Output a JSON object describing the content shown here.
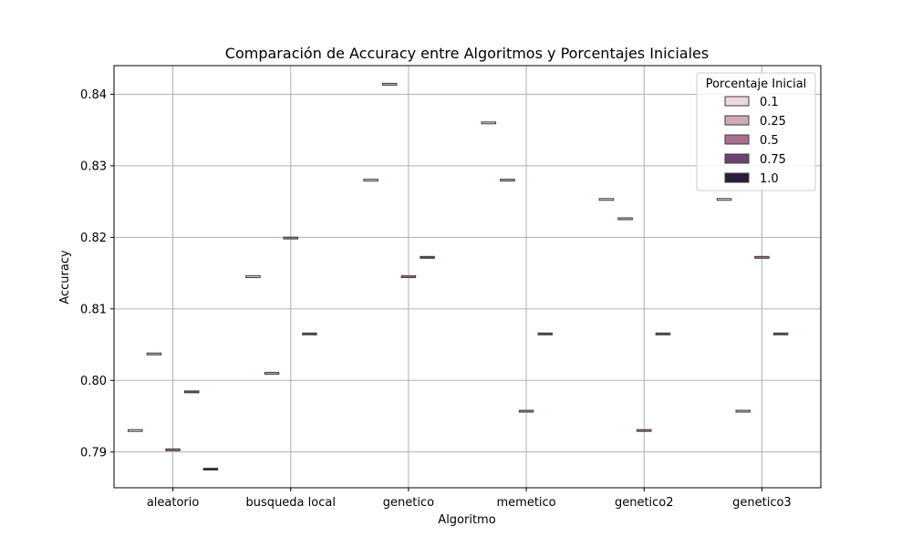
{
  "chart_data": {
    "type": "box",
    "title": "Comparación de Accuracy entre Algoritmos y Porcentajes Iniciales",
    "xlabel": "Algoritmo",
    "ylabel": "Accuracy",
    "categories": [
      "aleatorio",
      "busqueda local",
      "genetico",
      "memetico",
      "genetico2",
      "genetico3"
    ],
    "ylim": [
      0.785,
      0.844
    ],
    "yticks": [
      0.79,
      0.8,
      0.81,
      0.82,
      0.83,
      0.84
    ],
    "ytick_labels": [
      "0.79",
      "0.80",
      "0.81",
      "0.82",
      "0.83",
      "0.84"
    ],
    "grid": true,
    "legend": {
      "title": "Porcentaje Inicial",
      "placement": "top-right"
    },
    "series": [
      {
        "name": "0.1",
        "color": "#ecd8d8",
        "values": [
          0.793,
          0.8145,
          0.828,
          0.836,
          0.8253,
          0.8253
        ]
      },
      {
        "name": "0.25",
        "color": "#d0aab5",
        "values": [
          0.8037,
          0.801,
          0.8414,
          0.828,
          0.8226,
          0.7957
        ]
      },
      {
        "name": "0.5",
        "color": "#a8708e",
        "values": [
          0.7903,
          0.8199,
          0.8145,
          0.7957,
          0.793,
          0.8172
        ]
      },
      {
        "name": "0.75",
        "color": "#6a4470",
        "values": [
          0.7984,
          0.8065,
          0.8172,
          0.8065,
          0.8065,
          0.8065
        ]
      },
      {
        "name": "1.0",
        "color": "#2b1d3a",
        "values": [
          0.7876,
          null,
          null,
          null,
          null,
          null
        ]
      }
    ]
  }
}
